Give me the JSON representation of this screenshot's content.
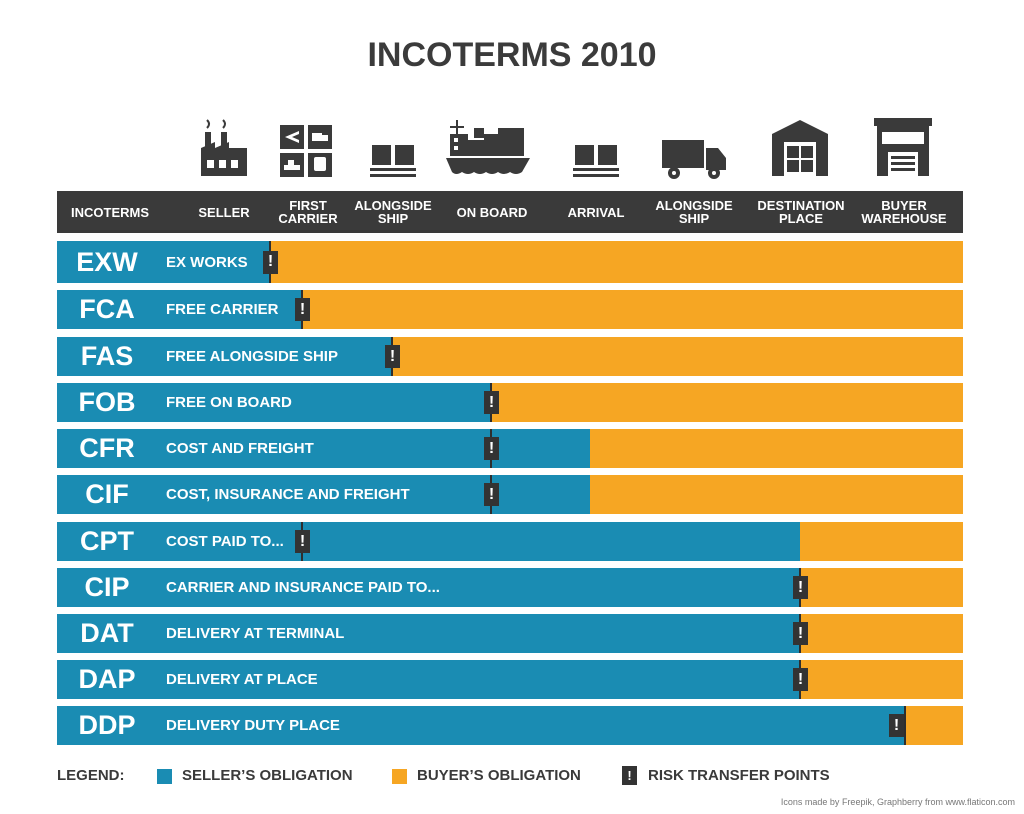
{
  "title": "INCOTERMS 2010",
  "colors": {
    "seller": "#1a8cb3",
    "buyer": "#f6a623",
    "risk": "#333333",
    "header": "#3a3a3a"
  },
  "columns": [
    {
      "key": "incoterms",
      "label": "INCOTERMS",
      "icon": ""
    },
    {
      "key": "seller",
      "label": "SELLER",
      "icon": "factory-icon"
    },
    {
      "key": "first_carrier",
      "label": "FIRST CARRIER",
      "icon": "transport-modes-icon"
    },
    {
      "key": "alongside_ship",
      "label": "ALONGSIDE SHIP",
      "icon": "pallet-boxes-icon"
    },
    {
      "key": "on_board",
      "label": "ON BOARD",
      "icon": "cargo-ship-icon"
    },
    {
      "key": "arrival",
      "label": "ARRIVAL",
      "icon": "pallet-boxes-icon"
    },
    {
      "key": "alongside_ship_dest",
      "label": "ALONGSIDE SHIP",
      "icon": "truck-icon"
    },
    {
      "key": "destination_place",
      "label": "DESTINATION PLACE",
      "icon": "warehouse-icon"
    },
    {
      "key": "buyer_warehouse",
      "label": "BUYER WAREHOUSE",
      "icon": "building-icon"
    }
  ],
  "terms": [
    {
      "code": "EXW",
      "name": "EX WORKS",
      "seller_until": "seller",
      "risk_at": "seller"
    },
    {
      "code": "FCA",
      "name": "FREE CARRIER",
      "seller_until": "first_carrier",
      "risk_at": "first_carrier"
    },
    {
      "code": "FAS",
      "name": "FREE ALONGSIDE SHIP",
      "seller_until": "alongside_ship",
      "risk_at": "alongside_ship"
    },
    {
      "code": "FOB",
      "name": "FREE ON BOARD",
      "seller_until": "on_board",
      "risk_at": "on_board"
    },
    {
      "code": "CFR",
      "name": "COST AND FREIGHT",
      "seller_until": "arrival",
      "risk_at": "on_board"
    },
    {
      "code": "CIF",
      "name": "COST, INSURANCE AND FREIGHT",
      "seller_until": "arrival",
      "risk_at": "on_board"
    },
    {
      "code": "CPT",
      "name": "COST PAID TO...",
      "seller_until": "destination_place",
      "risk_at": "first_carrier"
    },
    {
      "code": "CIP",
      "name": "CARRIER AND INSURANCE PAID TO...",
      "seller_until": "destination_place",
      "risk_at": "destination_place"
    },
    {
      "code": "DAT",
      "name": "DELIVERY AT TERMINAL",
      "seller_until": "destination_place",
      "risk_at": "destination_place"
    },
    {
      "code": "DAP",
      "name": "DELIVERY AT PLACE",
      "seller_until": "destination_place",
      "risk_at": "destination_place"
    },
    {
      "code": "DDP",
      "name": "DELIVERY DUTY PLACE",
      "seller_until": "buyer_warehouse",
      "risk_at": "buyer_warehouse"
    }
  ],
  "legend": {
    "label": "LEGEND:",
    "seller": "SELLER’S OBLIGATION",
    "buyer": "BUYER’S OBLIGATION",
    "risk": "RISK TRANSFER POINTS",
    "risk_glyph": "!"
  },
  "credit": "Icons made by Freepik, Graphberry from www.flaticon.com"
}
